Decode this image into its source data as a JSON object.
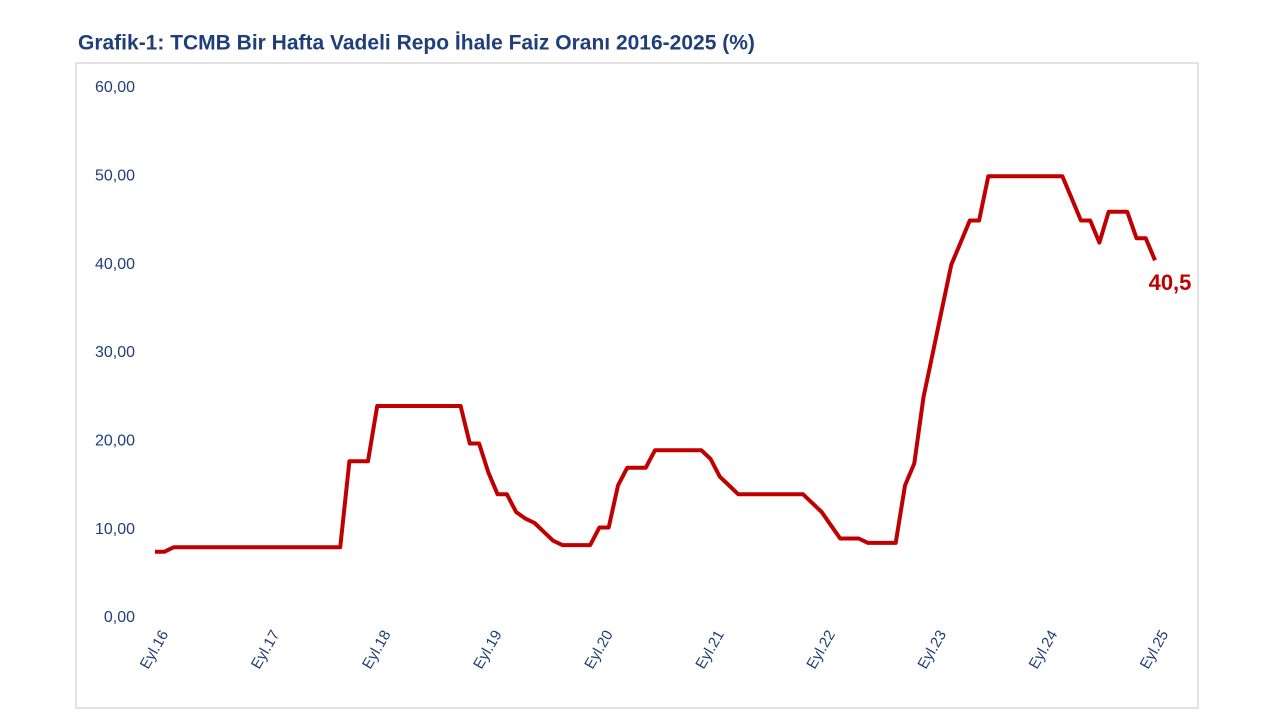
{
  "chart_data": {
    "type": "line",
    "title": "Grafik-1: TCMB Bir Hafta Vadeli Repo İhale Faiz Oranı 2016-2025 (%)",
    "categories": [
      "Eyl.16",
      null,
      null,
      null,
      null,
      null,
      null,
      null,
      null,
      null,
      null,
      null,
      "Eyl.17",
      null,
      null,
      null,
      null,
      null,
      null,
      null,
      null,
      null,
      null,
      null,
      "Eyl.18",
      null,
      null,
      null,
      null,
      null,
      null,
      null,
      null,
      null,
      null,
      null,
      "Eyl.19",
      null,
      null,
      null,
      null,
      null,
      null,
      null,
      null,
      null,
      null,
      null,
      "Eyl.20",
      null,
      null,
      null,
      null,
      null,
      null,
      null,
      null,
      null,
      null,
      null,
      "Eyl.21",
      null,
      null,
      null,
      null,
      null,
      null,
      null,
      null,
      null,
      null,
      null,
      "Eyl.22",
      null,
      null,
      null,
      null,
      null,
      null,
      null,
      null,
      null,
      null,
      null,
      "Eyl.23",
      null,
      null,
      null,
      null,
      null,
      null,
      null,
      null,
      null,
      null,
      null,
      "Eyl.24",
      null,
      null,
      null,
      null,
      null,
      null,
      null,
      null,
      null,
      null,
      null,
      "Eyl.25"
    ],
    "series": [
      {
        "name": "TCMB Bir Hafta Vadeli Repo İhale Faiz Oranı",
        "color": "#c00000",
        "values": [
          7.5,
          7.5,
          8,
          8,
          8,
          8,
          8,
          8,
          8,
          8,
          8,
          8,
          8,
          8,
          8,
          8,
          8,
          8,
          8,
          8,
          8,
          17.75,
          17.75,
          17.75,
          24,
          24,
          24,
          24,
          24,
          24,
          24,
          24,
          24,
          24,
          19.75,
          19.75,
          16.5,
          14,
          14,
          12,
          11.25,
          10.75,
          9.75,
          8.75,
          8.25,
          8.25,
          8.25,
          8.25,
          10.25,
          10.25,
          15,
          17,
          17,
          17,
          19,
          19,
          19,
          19,
          19,
          19,
          18,
          16,
          15,
          14,
          14,
          14,
          14,
          14,
          14,
          14,
          14,
          13,
          12,
          10.5,
          9,
          9,
          9,
          8.5,
          8.5,
          8.5,
          8.5,
          15,
          17.5,
          25,
          30,
          35,
          40,
          42.5,
          45,
          45,
          50,
          50,
          50,
          50,
          50,
          50,
          50,
          50,
          50,
          47.5,
          45,
          45,
          42.5,
          46,
          46,
          46,
          43,
          43,
          40.5
        ]
      }
    ],
    "ylim": [
      0,
      60
    ],
    "yticks": [
      {
        "value": 0,
        "label": "0,00"
      },
      {
        "value": 10,
        "label": "10,00"
      },
      {
        "value": 20,
        "label": "20,00"
      },
      {
        "value": 30,
        "label": "30,00"
      },
      {
        "value": 40,
        "label": "40,00"
      },
      {
        "value": 50,
        "label": "50,00"
      },
      {
        "value": 60,
        "label": "60,00"
      }
    ],
    "annotation": "40,5"
  }
}
